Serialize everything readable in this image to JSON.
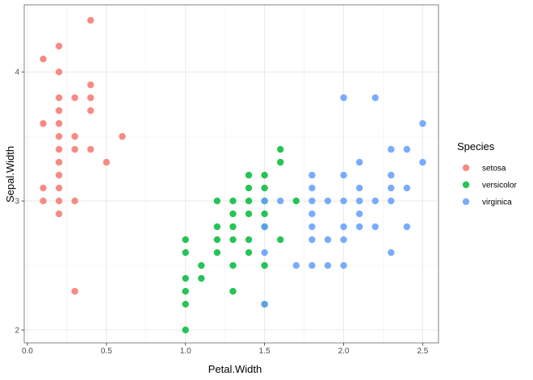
{
  "chart_data": {
    "type": "scatter",
    "xlabel": "Petal.Width",
    "ylabel": "Sepal.Width",
    "xlim": [
      -0.02,
      2.6
    ],
    "ylim": [
      1.9,
      4.52
    ],
    "x_ticks": [
      0.0,
      0.5,
      1.0,
      1.5,
      2.0,
      2.5
    ],
    "x_tick_labels": [
      "0.0",
      "0.5",
      "1.0",
      "1.5",
      "2.0",
      "2.5"
    ],
    "y_ticks": [
      2,
      3,
      4
    ],
    "y_tick_labels": [
      "2",
      "3",
      "4"
    ],
    "grid": true,
    "legend": {
      "title": "Species",
      "position": "right"
    },
    "series": [
      {
        "name": "setosa",
        "color": "#F8766D",
        "points": [
          [
            0.1,
            4.1
          ],
          [
            0.2,
            4.2
          ],
          [
            0.4,
            4.4
          ],
          [
            0.2,
            4.0
          ],
          [
            0.4,
            3.9
          ],
          [
            0.3,
            3.8
          ],
          [
            0.2,
            3.8
          ],
          [
            0.4,
            3.8
          ],
          [
            0.2,
            3.7
          ],
          [
            0.4,
            3.7
          ],
          [
            0.1,
            3.6
          ],
          [
            0.2,
            3.6
          ],
          [
            0.2,
            3.5
          ],
          [
            0.3,
            3.5
          ],
          [
            0.6,
            3.5
          ],
          [
            0.2,
            3.4
          ],
          [
            0.3,
            3.4
          ],
          [
            0.4,
            3.4
          ],
          [
            0.2,
            3.3
          ],
          [
            0.5,
            3.3
          ],
          [
            0.2,
            3.2
          ],
          [
            0.2,
            3.1
          ],
          [
            0.1,
            3.1
          ],
          [
            0.1,
            3.0
          ],
          [
            0.2,
            3.0
          ],
          [
            0.3,
            3.0
          ],
          [
            0.2,
            2.9
          ],
          [
            0.3,
            2.3
          ]
        ]
      },
      {
        "name": "versicolor",
        "color": "#00BA38",
        "points": [
          [
            1.6,
            3.4
          ],
          [
            1.5,
            3.2
          ],
          [
            1.4,
            3.2
          ],
          [
            1.6,
            3.3
          ],
          [
            1.4,
            3.1
          ],
          [
            1.5,
            3.1
          ],
          [
            1.2,
            3.0
          ],
          [
            1.3,
            3.0
          ],
          [
            1.4,
            3.0
          ],
          [
            1.5,
            3.0
          ],
          [
            1.7,
            3.0
          ],
          [
            1.3,
            2.9
          ],
          [
            1.4,
            2.9
          ],
          [
            1.5,
            2.9
          ],
          [
            1.2,
            2.8
          ],
          [
            1.3,
            2.8
          ],
          [
            1.5,
            2.8
          ],
          [
            1.2,
            2.7
          ],
          [
            1.3,
            2.7
          ],
          [
            1.4,
            2.7
          ],
          [
            1.6,
            2.7
          ],
          [
            1.0,
            2.7
          ],
          [
            1.0,
            2.6
          ],
          [
            1.2,
            2.6
          ],
          [
            1.4,
            2.6
          ],
          [
            1.1,
            2.5
          ],
          [
            1.3,
            2.5
          ],
          [
            1.5,
            2.5
          ],
          [
            1.0,
            2.4
          ],
          [
            1.1,
            2.4
          ],
          [
            1.0,
            2.3
          ],
          [
            1.3,
            2.3
          ],
          [
            1.0,
            2.2
          ],
          [
            1.5,
            2.2
          ],
          [
            1.0,
            2.0
          ]
        ]
      },
      {
        "name": "virginica",
        "color": "#619CFF",
        "points": [
          [
            2.0,
            3.8
          ],
          [
            2.2,
            3.8
          ],
          [
            2.5,
            3.6
          ],
          [
            2.3,
            3.4
          ],
          [
            2.4,
            3.4
          ],
          [
            2.1,
            3.3
          ],
          [
            2.5,
            3.3
          ],
          [
            1.8,
            3.2
          ],
          [
            2.0,
            3.2
          ],
          [
            2.3,
            3.2
          ],
          [
            1.8,
            3.1
          ],
          [
            2.1,
            3.1
          ],
          [
            2.3,
            3.1
          ],
          [
            2.4,
            3.1
          ],
          [
            1.6,
            3.0
          ],
          [
            1.8,
            3.0
          ],
          [
            2.0,
            3.0
          ],
          [
            2.1,
            3.0
          ],
          [
            2.2,
            3.0
          ],
          [
            2.3,
            3.0
          ],
          [
            1.5,
            3.0
          ],
          [
            1.9,
            3.0
          ],
          [
            1.8,
            2.9
          ],
          [
            2.1,
            2.9
          ],
          [
            1.5,
            2.8
          ],
          [
            1.8,
            2.8
          ],
          [
            2.0,
            2.8
          ],
          [
            2.1,
            2.8
          ],
          [
            2.2,
            2.8
          ],
          [
            2.4,
            2.8
          ],
          [
            1.8,
            2.7
          ],
          [
            1.9,
            2.7
          ],
          [
            2.0,
            2.7
          ],
          [
            1.5,
            2.6
          ],
          [
            2.3,
            2.6
          ],
          [
            1.7,
            2.5
          ],
          [
            1.8,
            2.5
          ],
          [
            1.9,
            2.5
          ],
          [
            2.0,
            2.5
          ],
          [
            1.5,
            2.2
          ]
        ]
      }
    ]
  }
}
